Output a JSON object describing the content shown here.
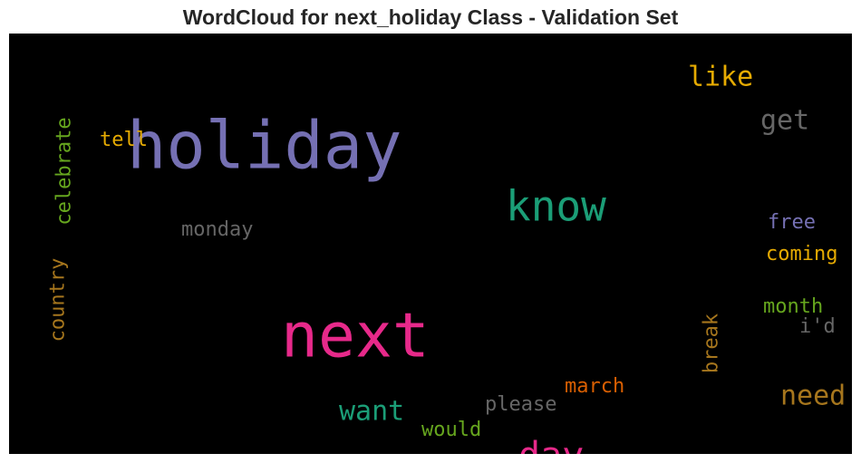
{
  "chart_data": {
    "type": "wordcloud",
    "title": "WordCloud for next_holiday Class - Validation Set",
    "background": "#000000",
    "words": [
      {
        "text": "holiday",
        "color": "#7570b3",
        "rotate": false
      },
      {
        "text": "next",
        "color": "#e7298a",
        "rotate": false
      },
      {
        "text": "know",
        "color": "#1b9e77",
        "rotate": false
      },
      {
        "text": "day",
        "color": "#e7298a",
        "rotate": false
      },
      {
        "text": "like",
        "color": "#e6ab02",
        "rotate": false
      },
      {
        "text": "get",
        "color": "#666666",
        "rotate": false
      },
      {
        "text": "want",
        "color": "#1b9e77",
        "rotate": false
      },
      {
        "text": "need",
        "color": "#a6761d",
        "rotate": false
      },
      {
        "text": "celebrate",
        "color": "#66a61e",
        "rotate": true
      },
      {
        "text": "country",
        "color": "#a6761d",
        "rotate": true
      },
      {
        "text": "monday",
        "color": "#666666",
        "rotate": false
      },
      {
        "text": "coming",
        "color": "#e6ab02",
        "rotate": false
      },
      {
        "text": "free",
        "color": "#7570b3",
        "rotate": false
      },
      {
        "text": "month",
        "color": "#66a61e",
        "rotate": false
      },
      {
        "text": "march",
        "color": "#d95f02",
        "rotate": false
      },
      {
        "text": "please",
        "color": "#666666",
        "rotate": false
      },
      {
        "text": "break",
        "color": "#a6761d",
        "rotate": true
      },
      {
        "text": "tell",
        "color": "#e6ab02",
        "rotate": false
      },
      {
        "text": "would",
        "color": "#66a61e",
        "rotate": false
      },
      {
        "text": "i'd",
        "color": "#666666",
        "rotate": false
      }
    ]
  }
}
